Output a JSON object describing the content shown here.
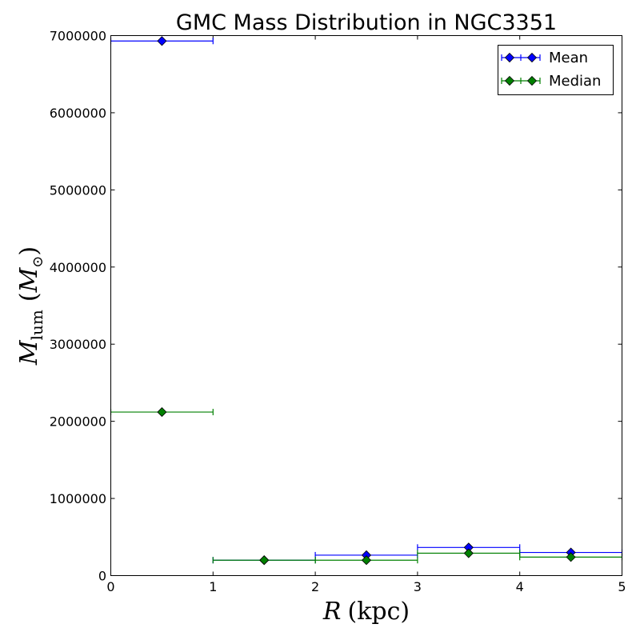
{
  "chart_data": {
    "type": "scatter",
    "title": "GMC Mass Distribution in NGC3351",
    "xlabel": {
      "var": "R",
      "unit": "(kpc)"
    },
    "ylabel": {
      "var": "M",
      "sub": "lum",
      "paren_open": "(",
      "unit": "M",
      "unit_sub": "⊙",
      "paren_close": ")"
    },
    "xlim": [
      0,
      5
    ],
    "ylim": [
      0,
      7000000
    ],
    "xticks": [
      "0",
      "1",
      "2",
      "3",
      "4",
      "5"
    ],
    "yticks": [
      "0",
      "1000000",
      "2000000",
      "3000000",
      "4000000",
      "5000000",
      "6000000",
      "7000000"
    ],
    "grid": false,
    "legend_position": "top-right",
    "series": [
      {
        "name": "Mean",
        "color": "#0000ff",
        "marker": "diamond",
        "points": [
          {
            "x": 0.5,
            "y": 6930000,
            "xerr": 0.5
          },
          {
            "x": 1.5,
            "y": 200000,
            "xerr": 0.5
          },
          {
            "x": 2.5,
            "y": 265000,
            "xerr": 0.5
          },
          {
            "x": 3.5,
            "y": 365000,
            "xerr": 0.5
          },
          {
            "x": 4.5,
            "y": 300000,
            "xerr": 0.5
          }
        ]
      },
      {
        "name": "Median",
        "color": "#008000",
        "marker": "diamond",
        "points": [
          {
            "x": 0.5,
            "y": 2120000,
            "xerr": 0.5
          },
          {
            "x": 1.5,
            "y": 200000,
            "xerr": 0.5
          },
          {
            "x": 2.5,
            "y": 200000,
            "xerr": 0.5
          },
          {
            "x": 3.5,
            "y": 290000,
            "xerr": 0.5
          },
          {
            "x": 4.5,
            "y": 240000,
            "xerr": 0.5
          }
        ]
      }
    ]
  }
}
